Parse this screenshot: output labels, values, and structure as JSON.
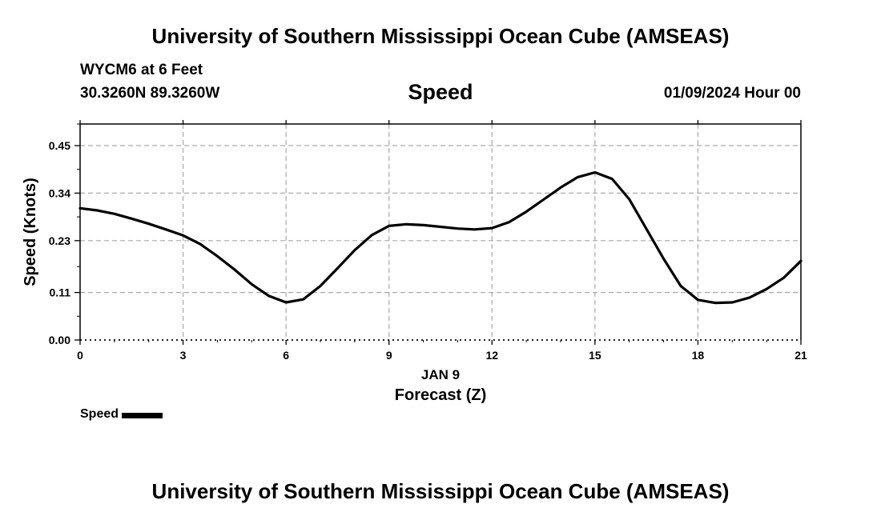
{
  "header": {
    "title": "University of Southern Mississippi Ocean Cube (AMSEAS)",
    "station": "WYCM6 at 6 Feet",
    "coordinates": "30.3260N  89.3260W",
    "date_label": "01/09/2024 Hour 00"
  },
  "footer": {
    "title": "University of Southern Mississippi Ocean Cube (AMSEAS)"
  },
  "chart_data": {
    "type": "line",
    "title": "Speed",
    "xlabel": "Forecast (Z)",
    "xlabel_date": "JAN 9",
    "ylabel": "Speed (Knots)",
    "xlim": [
      0,
      21
    ],
    "ylim": [
      0,
      0.5
    ],
    "x_ticks": [
      0,
      3,
      6,
      9,
      12,
      15,
      18,
      21
    ],
    "x_tick_labels": [
      "0",
      "3",
      "6",
      "9",
      "12",
      "15",
      "18",
      "21"
    ],
    "y_ticks": [
      0.0,
      0.11,
      0.23,
      0.34,
      0.45
    ],
    "y_tick_labels": [
      "0.00",
      "0.11",
      "0.23",
      "0.34",
      "0.45"
    ],
    "grid": true,
    "legend_position": "bottom-left",
    "series": [
      {
        "name": "Speed",
        "color": "#000000",
        "x": [
          0,
          0.5,
          1,
          1.5,
          2,
          2.5,
          3,
          3.5,
          4,
          4.5,
          5,
          5.5,
          6,
          6.5,
          7,
          7.5,
          8,
          8.5,
          9,
          9.5,
          10,
          10.5,
          11,
          11.5,
          12,
          12.5,
          13,
          13.5,
          14,
          14.5,
          15,
          15.5,
          16,
          16.5,
          17,
          17.5,
          18,
          18.5,
          19,
          19.5,
          20,
          20.5,
          21
        ],
        "values": [
          0.305,
          0.3,
          0.292,
          0.281,
          0.269,
          0.256,
          0.242,
          0.222,
          0.194,
          0.163,
          0.129,
          0.102,
          0.087,
          0.094,
          0.125,
          0.166,
          0.208,
          0.243,
          0.264,
          0.268,
          0.266,
          0.262,
          0.258,
          0.256,
          0.259,
          0.273,
          0.297,
          0.325,
          0.353,
          0.377,
          0.388,
          0.373,
          0.326,
          0.257,
          0.188,
          0.125,
          0.093,
          0.086,
          0.087,
          0.098,
          0.118,
          0.144,
          0.183
        ]
      }
    ],
    "legend": [
      {
        "label": "Speed",
        "color": "#000000"
      }
    ]
  }
}
